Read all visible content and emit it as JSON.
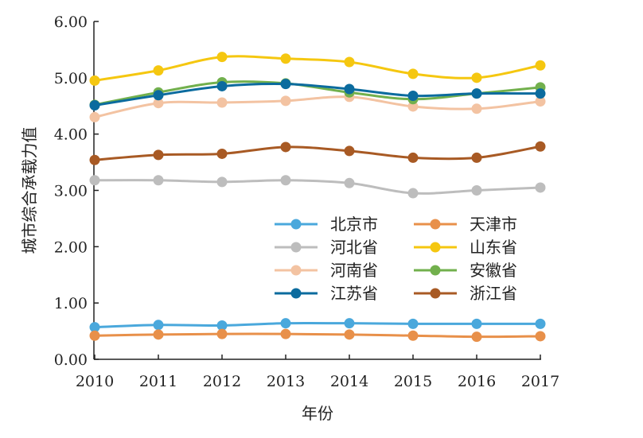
{
  "chart_data": {
    "type": "line",
    "xlabel": "年份",
    "ylabel": "城市综合承载力值",
    "x": [
      "2010",
      "2011",
      "2012",
      "2013",
      "2014",
      "2015",
      "2016",
      "2017"
    ],
    "ylim": [
      0,
      6
    ],
    "yticks": [
      "0.00",
      "1.00",
      "2.00",
      "3.00",
      "4.00",
      "5.00",
      "6.00"
    ],
    "grid": false,
    "legend_position": "center-right",
    "series": [
      {
        "name": "北京市",
        "color": "#4aa8dc",
        "values": [
          0.57,
          0.61,
          0.6,
          0.64,
          0.64,
          0.63,
          0.63,
          0.63
        ]
      },
      {
        "name": "天津市",
        "color": "#e8904a",
        "values": [
          0.42,
          0.44,
          0.45,
          0.45,
          0.44,
          0.42,
          0.4,
          0.41
        ]
      },
      {
        "name": "河北省",
        "color": "#bdbdbd",
        "values": [
          3.18,
          3.18,
          3.15,
          3.18,
          3.13,
          2.95,
          3.0,
          3.05
        ]
      },
      {
        "name": "山东省",
        "color": "#f5c710",
        "values": [
          4.95,
          5.13,
          5.37,
          5.34,
          5.28,
          5.07,
          5.0,
          5.22
        ]
      },
      {
        "name": "河南省",
        "color": "#f3c3a2",
        "values": [
          4.3,
          4.55,
          4.56,
          4.59,
          4.66,
          4.49,
          4.45,
          4.58
        ]
      },
      {
        "name": "安徽省",
        "color": "#72b04d",
        "values": [
          4.52,
          4.74,
          4.92,
          4.9,
          4.74,
          4.62,
          4.72,
          4.83
        ]
      },
      {
        "name": "江苏省",
        "color": "#0b6b9e",
        "values": [
          4.51,
          4.69,
          4.85,
          4.89,
          4.8,
          4.68,
          4.72,
          4.72
        ]
      },
      {
        "name": "浙江省",
        "color": "#a85a24",
        "values": [
          3.54,
          3.63,
          3.65,
          3.77,
          3.7,
          3.58,
          3.58,
          3.78
        ]
      }
    ]
  }
}
